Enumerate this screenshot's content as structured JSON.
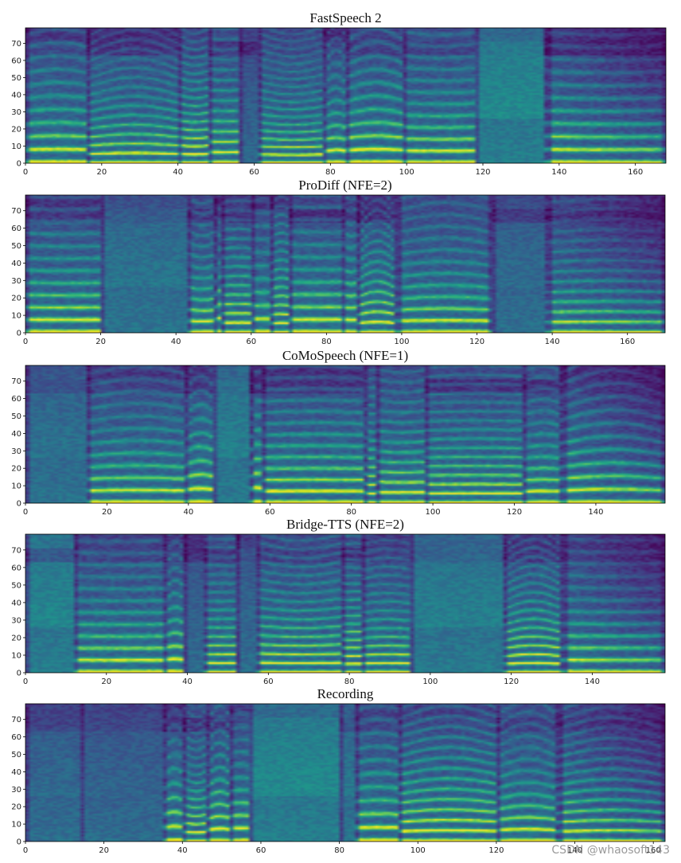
{
  "chart_data": [
    {
      "type": "heatmap",
      "title": "FastSpeech 2",
      "xlim": [
        0,
        168
      ],
      "ylim": [
        0,
        79
      ],
      "x_ticks": [
        0,
        20,
        40,
        60,
        80,
        100,
        120,
        140,
        160
      ],
      "y_ticks": [
        0,
        10,
        20,
        30,
        40,
        50,
        60,
        70
      ],
      "colormap": "viridis",
      "segment_boundaries": [
        16,
        40,
        48,
        56,
        61,
        78,
        84,
        99,
        118,
        136
      ]
    },
    {
      "type": "heatmap",
      "title": "ProDiff (NFE=2)",
      "xlim": [
        0,
        170
      ],
      "ylim": [
        0,
        79
      ],
      "x_ticks": [
        0,
        20,
        40,
        60,
        80,
        100,
        120,
        140,
        160
      ],
      "y_ticks": [
        0,
        10,
        20,
        30,
        40,
        50,
        60,
        70
      ],
      "colormap": "viridis",
      "segment_boundaries": [
        20,
        43,
        50,
        52,
        60,
        65,
        70,
        84,
        88,
        98,
        124,
        138
      ]
    },
    {
      "type": "heatmap",
      "title": "CoMoSpeech (NFE=1)",
      "xlim": [
        0,
        157
      ],
      "ylim": [
        0,
        79
      ],
      "x_ticks": [
        0,
        20,
        40,
        60,
        80,
        100,
        120,
        140
      ],
      "y_ticks": [
        0,
        10,
        20,
        30,
        40,
        50,
        60,
        70
      ],
      "colormap": "viridis",
      "segment_boundaries": [
        15,
        39,
        46,
        55,
        58,
        83,
        86,
        98,
        122,
        131
      ]
    },
    {
      "type": "heatmap",
      "title": "Bridge-TTS (NFE=2)",
      "xlim": [
        0,
        158
      ],
      "ylim": [
        0,
        79
      ],
      "x_ticks": [
        0,
        20,
        40,
        60,
        80,
        100,
        120,
        140
      ],
      "y_ticks": [
        0,
        10,
        20,
        30,
        40,
        50,
        60,
        70
      ],
      "colormap": "viridis",
      "segment_boundaries": [
        12,
        34,
        39,
        44,
        52,
        57,
        78,
        83,
        95,
        118,
        132
      ]
    },
    {
      "type": "heatmap",
      "title": "Recording",
      "xlim": [
        0,
        163
      ],
      "ylim": [
        0,
        79
      ],
      "x_ticks": [
        0,
        20,
        40,
        60,
        80,
        100,
        120,
        140,
        160
      ],
      "y_ticks": [
        0,
        10,
        20,
        30,
        40,
        50,
        60,
        70
      ],
      "colormap": "viridis",
      "segment_boundaries": [
        14,
        35,
        40,
        46,
        52,
        57,
        80,
        84,
        95,
        120,
        135
      ]
    }
  ],
  "watermark": "CSDN @whaosoft143"
}
